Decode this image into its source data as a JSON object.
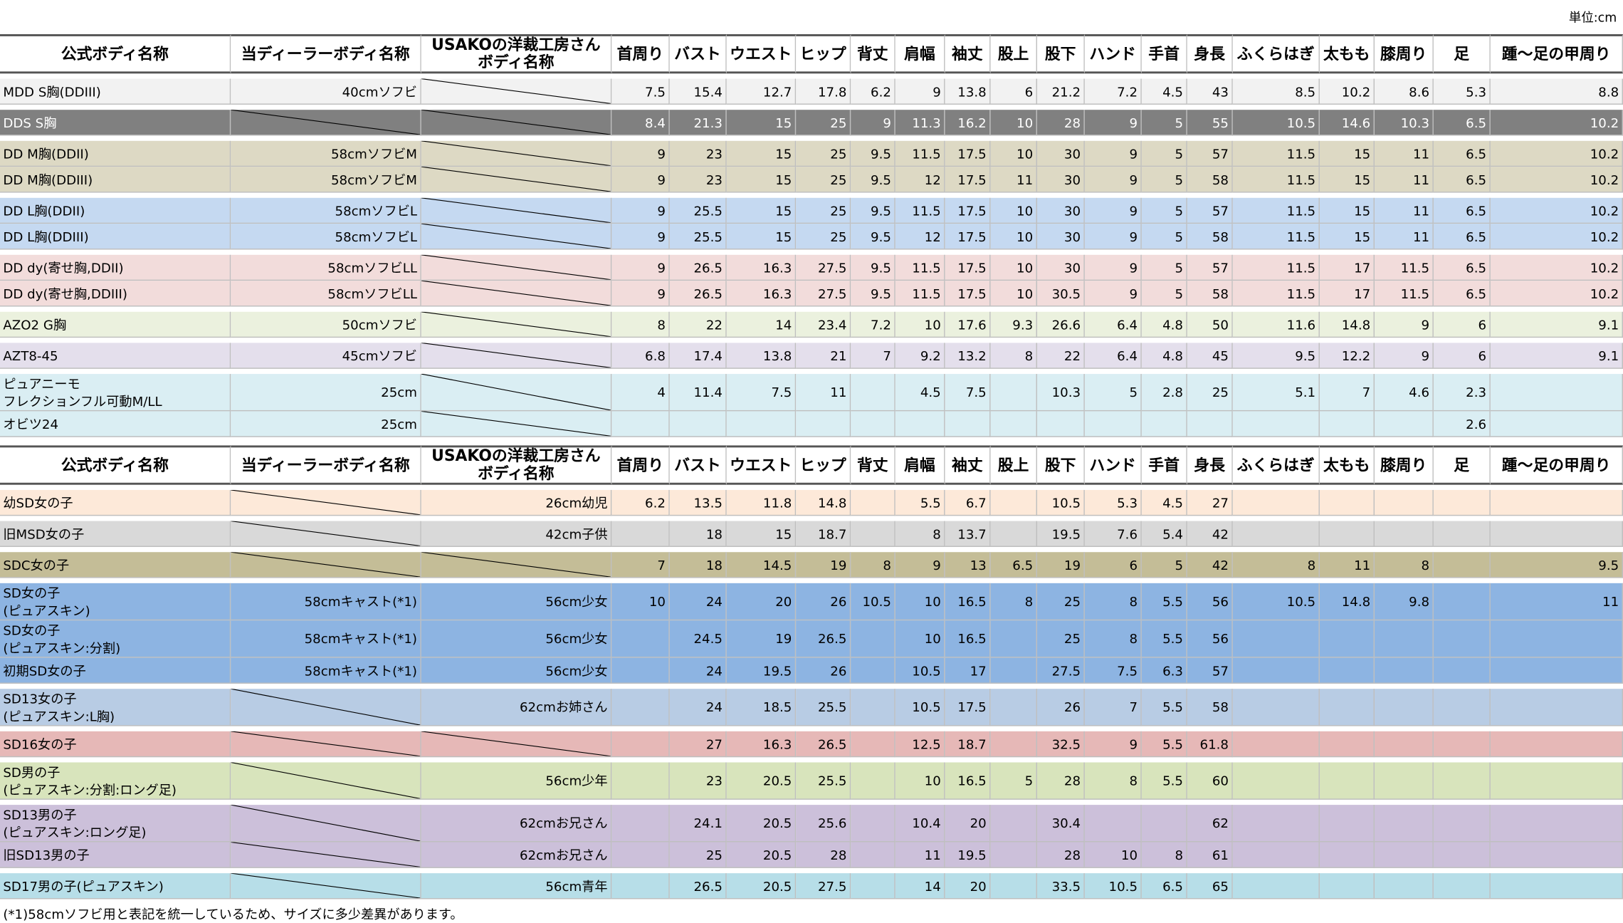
{
  "unit": "単位:cm",
  "tables": [
    {
      "header": [
        "公式ボディ名称",
        "当ディーラーボディ名称",
        "USAKOの洋裁工房さん\nボディ名称",
        "首周り",
        "バスト",
        "ウエスト",
        "ヒップ",
        "背丈",
        "肩幅",
        "袖丈",
        "股上",
        "股下",
        "ハンド",
        "手首",
        "身長",
        "ふくらはぎ",
        "太もも",
        "膝周り",
        "足",
        "踵～足の甲周り"
      ],
      "groups": [
        {
          "color": "#f2f2f2",
          "rows": [
            [
              "MDD S胸(DDIII)",
              "40cmソフビ",
              null,
              7.5,
              15.4,
              12.7,
              17.8,
              6.2,
              9,
              13.8,
              6,
              21.2,
              7.2,
              4.5,
              43,
              8.5,
              10.2,
              8.6,
              5.3,
              8.8
            ]
          ]
        },
        {
          "color": "#808080",
          "text_color": "#ffffff",
          "rows": [
            [
              "DDS S胸",
              null,
              null,
              8.4,
              21.3,
              15,
              25,
              9,
              11.3,
              16.2,
              10,
              28,
              9,
              5,
              55,
              10.5,
              14.6,
              10.3,
              6.5,
              10.2
            ]
          ]
        },
        {
          "color": "#ddd9c4",
          "rows": [
            [
              "DD M胸(DDII)",
              "58cmソフビM",
              null,
              9,
              23,
              15,
              25,
              9.5,
              11.5,
              17.5,
              10,
              30,
              9,
              5,
              57,
              11.5,
              15,
              11,
              6.5,
              10.2
            ],
            [
              "DD M胸(DDIII)",
              "58cmソフビM",
              null,
              9,
              23,
              15,
              25,
              9.5,
              12,
              17.5,
              11,
              30,
              9,
              5,
              58,
              11.5,
              15,
              11,
              6.5,
              10.2
            ]
          ]
        },
        {
          "color": "#c5d9f1",
          "rows": [
            [
              "DD L胸(DDII)",
              "58cmソフビL",
              null,
              9,
              25.5,
              15,
              25,
              9.5,
              11.5,
              17.5,
              10,
              30,
              9,
              5,
              57,
              11.5,
              15,
              11,
              6.5,
              10.2
            ],
            [
              "DD L胸(DDIII)",
              "58cmソフビL",
              null,
              9,
              25.5,
              15,
              25,
              9.5,
              12,
              17.5,
              10,
              30,
              9,
              5,
              58,
              11.5,
              15,
              11,
              6.5,
              10.2
            ]
          ]
        },
        {
          "color": "#f2dcdb",
          "rows": [
            [
              "DD dy(寄せ胸,DDII)",
              "58cmソフビLL",
              null,
              9,
              26.5,
              16.3,
              27.5,
              9.5,
              11.5,
              17.5,
              10,
              30,
              9,
              5,
              57,
              11.5,
              17,
              11.5,
              6.5,
              10.2
            ],
            [
              "DD dy(寄せ胸,DDIII)",
              "58cmソフビLL",
              null,
              9,
              26.5,
              16.3,
              27.5,
              9.5,
              11.5,
              17.5,
              10,
              30.5,
              9,
              5,
              58,
              11.5,
              17,
              11.5,
              6.5,
              10.2
            ]
          ]
        },
        {
          "color": "#ebf1de",
          "rows": [
            [
              "AZO2 G胸",
              "50cmソフビ",
              null,
              8,
              22,
              14,
              23.4,
              7.2,
              10,
              17.6,
              9.3,
              26.6,
              6.4,
              4.8,
              50,
              11.6,
              14.8,
              9,
              6,
              9.1
            ]
          ]
        },
        {
          "color": "#e4dfec",
          "rows": [
            [
              "AZT8-45",
              "45cmソフビ",
              null,
              6.8,
              17.4,
              13.8,
              21,
              7,
              9.2,
              13.2,
              8,
              22,
              6.4,
              4.8,
              45,
              9.5,
              12.2,
              9,
              6,
              9.1
            ]
          ]
        },
        {
          "color": "#daeef3",
          "rows": [
            [
              "ピュアニーモ\nフレクションフル可動M/LL",
              "25cm",
              null,
              4,
              11.4,
              7.5,
              11,
              null,
              4.5,
              7.5,
              null,
              10.3,
              5,
              2.8,
              25,
              5.1,
              7,
              4.6,
              2.3,
              null
            ],
            [
              "オビツ24",
              "25cm",
              null,
              null,
              null,
              null,
              null,
              null,
              null,
              null,
              null,
              null,
              null,
              null,
              null,
              null,
              null,
              null,
              2.6,
              null
            ]
          ]
        }
      ]
    },
    {
      "header": [
        "公式ボディ名称",
        "当ディーラーボディ名称",
        "USAKOの洋裁工房さん\nボディ名称",
        "首周り",
        "バスト",
        "ウエスト",
        "ヒップ",
        "背丈",
        "肩幅",
        "袖丈",
        "股上",
        "股下",
        "ハンド",
        "手首",
        "身長",
        "ふくらはぎ",
        "太もも",
        "膝周り",
        "足",
        "踵～足の甲周り"
      ],
      "groups": [
        {
          "color": "#fde9d9",
          "rows": [
            [
              "幼SD女の子",
              null,
              "26cm幼児",
              6.2,
              13.5,
              11.8,
              14.8,
              null,
              5.5,
              6.7,
              null,
              10.5,
              5.3,
              4.5,
              27,
              null,
              null,
              null,
              null,
              null
            ]
          ]
        },
        {
          "color": "#d9d9d9",
          "rows": [
            [
              "旧MSD女の子",
              null,
              "42cm子供",
              null,
              18,
              15,
              18.7,
              null,
              8,
              13.7,
              null,
              19.5,
              7.6,
              5.4,
              42,
              null,
              null,
              null,
              null,
              null
            ]
          ]
        },
        {
          "color": "#c4bd97",
          "rows": [
            [
              "SDC女の子",
              null,
              null,
              7,
              18,
              14.5,
              19,
              8,
              9,
              13,
              6.5,
              19,
              6,
              5,
              42,
              8,
              11,
              8,
              null,
              9.5
            ]
          ]
        },
        {
          "color": "#8db4e2",
          "rows": [
            [
              "SD女の子\n(ピュアスキン)",
              "58cmキャスト(*1)",
              "56cm少女",
              10,
              24,
              20,
              26,
              10.5,
              10,
              16.5,
              8,
              25,
              8,
              5.5,
              56,
              10.5,
              14.8,
              9.8,
              null,
              11
            ],
            [
              "SD女の子\n(ピュアスキン:分割)",
              "58cmキャスト(*1)",
              "56cm少女",
              null,
              24.5,
              19,
              26.5,
              null,
              10,
              16.5,
              null,
              25,
              8,
              5.5,
              56,
              null,
              null,
              null,
              null,
              null
            ],
            [
              "初期SD女の子",
              "58cmキャスト(*1)",
              "56cm少女",
              null,
              24,
              19.5,
              26,
              null,
              10.5,
              17,
              null,
              27.5,
              7.5,
              6.3,
              57,
              null,
              null,
              null,
              null,
              null
            ]
          ]
        },
        {
          "color": "#b8cce4",
          "rows": [
            [
              "SD13女の子\n(ピュアスキン:L胸)",
              null,
              "62cmお姉さん",
              null,
              24,
              18.5,
              25.5,
              null,
              10.5,
              17.5,
              null,
              26,
              7,
              5.5,
              58,
              null,
              null,
              null,
              null,
              null
            ]
          ]
        },
        {
          "color": "#e6b8b7",
          "rows": [
            [
              "SD16女の子",
              null,
              null,
              null,
              27,
              16.3,
              26.5,
              null,
              12.5,
              18.7,
              null,
              32.5,
              9,
              5.5,
              61.8,
              null,
              null,
              null,
              null,
              null
            ]
          ]
        },
        {
          "color": "#d8e4bc",
          "rows": [
            [
              "SD男の子\n(ピュアスキン:分割:ロング足)",
              null,
              "56cm少年",
              null,
              23,
              20.5,
              25.5,
              null,
              10,
              16.5,
              5,
              28,
              8,
              5.5,
              60,
              null,
              null,
              null,
              null,
              null
            ]
          ]
        },
        {
          "color": "#ccc0da",
          "rows": [
            [
              "SD13男の子\n(ピュアスキン:ロング足)",
              null,
              "62cmお兄さん",
              null,
              24.1,
              20.5,
              25.6,
              null,
              10.4,
              20,
              null,
              30.4,
              null,
              null,
              62,
              null,
              null,
              null,
              null,
              null
            ],
            [
              "旧SD13男の子",
              null,
              "62cmお兄さん",
              null,
              25,
              20.5,
              28,
              null,
              11,
              19.5,
              null,
              28,
              10,
              8,
              61,
              null,
              null,
              null,
              null,
              null
            ]
          ]
        },
        {
          "color": "#b7dee8",
          "rows": [
            [
              "SD17男の子(ピュアスキン)",
              null,
              "56cm青年",
              null,
              26.5,
              20.5,
              27.5,
              null,
              14,
              20,
              null,
              33.5,
              10.5,
              6.5,
              65,
              null,
              null,
              null,
              null,
              null
            ]
          ]
        }
      ]
    }
  ],
  "footnote": "(*1)58cmソフビ用と表記を統一しているため、サイズに多少差異があります。"
}
